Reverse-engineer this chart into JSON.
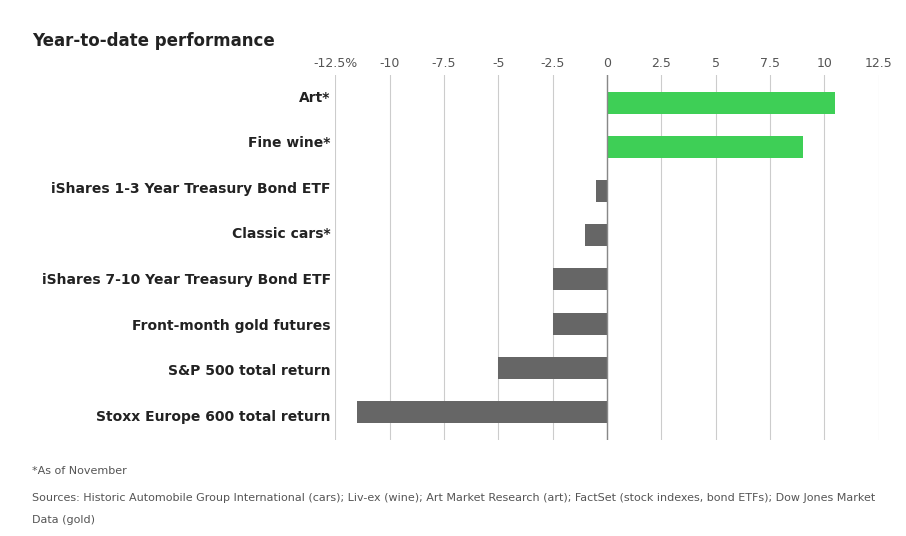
{
  "title": "Year-to-date performance",
  "categories": [
    "Stoxx Europe 600 total return",
    "S&P 500 total return",
    "Front-month gold futures",
    "iShares 7-10 Year Treasury Bond ETF",
    "Classic cars*",
    "iShares 1-3 Year Treasury Bond ETF",
    "Fine wine*",
    "Art*"
  ],
  "values": [
    -11.5,
    -5.0,
    -2.5,
    -2.5,
    -1.0,
    -0.5,
    9.0,
    10.5
  ],
  "bar_colors": [
    "#666666",
    "#666666",
    "#666666",
    "#666666",
    "#666666",
    "#666666",
    "#3ecf56",
    "#3ecf56"
  ],
  "xlim": [
    -12.5,
    12.5
  ],
  "xticks": [
    -12.5,
    -10,
    -7.5,
    -5,
    -2.5,
    0,
    2.5,
    5,
    7.5,
    10,
    12.5
  ],
  "xtick_labels": [
    "-12.5%",
    "-10",
    "-7.5",
    "-5",
    "-2.5",
    "0",
    "2.5",
    "5",
    "7.5",
    "10",
    "12.5"
  ],
  "footnote_line1": "*As of November",
  "footnote_line2": "Sources: Historic Automobile Group International (cars); Liv-ex (wine); Art Market Research (art); FactSet (stock indexes, bond ETFs); Dow Jones Market",
  "footnote_line3": "Data (gold)",
  "background_color": "#ffffff",
  "bar_height": 0.5,
  "title_fontsize": 12,
  "label_fontsize": 10,
  "tick_fontsize": 9,
  "footnote_fontsize": 8
}
